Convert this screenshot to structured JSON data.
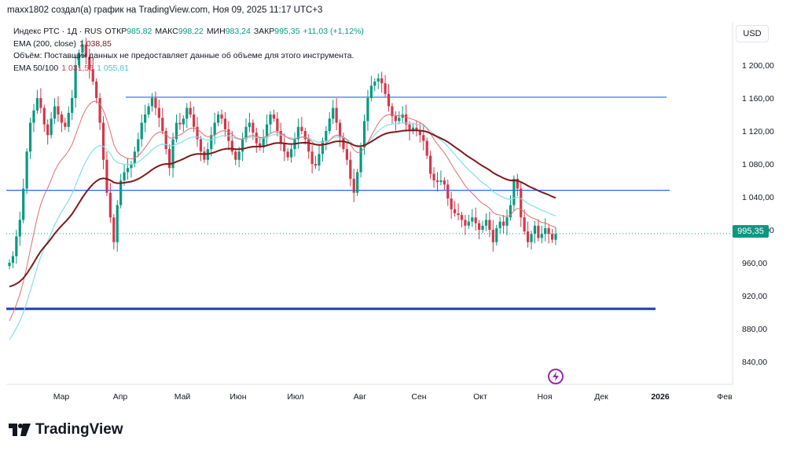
{
  "header": {
    "text": "maxx1802 создал(а) график на TradingView.com, Ноя 09, 2025 11:17 UTC+3"
  },
  "legend": {
    "symbol": "Индекс РТС · 1Д · RUS",
    "open_key": "ОТКР",
    "open_val": "985,82",
    "high_key": "МАКС",
    "high_val": "998,22",
    "low_key": "МИН",
    "low_val": "983,24",
    "close_key": "ЗАКР",
    "close_val": "995,35",
    "change": "+11,03 (+1,12%)",
    "ema200_label": "EMA (200, close)",
    "ema200_val": "1 038,85",
    "volume_text": "Объём: Поставщик данных не предоставляет данные об объеме для этого инструмента.",
    "ema50_100_label": "EMA 50/100",
    "ema50_val": "1 031,56",
    "ema100_val": "1 055,81"
  },
  "currency": "USD",
  "price_tag": "995,35",
  "brand": "TradingView",
  "colors": {
    "up": "#089981",
    "down": "#d2384a",
    "ema200": "#7a1b1b",
    "ema50": "#e06d6d",
    "ema100": "#7fe0ea",
    "hline": "#2962ff",
    "hline_thick": "#1e40af"
  },
  "chart_data": {
    "type": "candlestick",
    "y_ticks": [
      "1 200,00",
      "1 160,00",
      "1 120,00",
      "1 080,00",
      "1 040,00",
      "1 000,00",
      "960,00",
      "920,00",
      "880,00",
      "840,00"
    ],
    "x_ticks": [
      "Мар",
      "Апр",
      "Май",
      "Июн",
      "Июл",
      "Авг",
      "Сен",
      "Окт",
      "Ноя",
      "Дек",
      "2026",
      "Фев"
    ],
    "ylim": [
      810,
      1235
    ],
    "horizontal_lines": [
      1161,
      1048,
      904
    ],
    "current_price": 995.35,
    "closes": [
      960,
      968,
      992,
      1012,
      1050,
      1095,
      1130,
      1145,
      1160,
      1148,
      1128,
      1115,
      1135,
      1150,
      1140,
      1130,
      1125,
      1142,
      1160,
      1200,
      1215,
      1225,
      1210,
      1195,
      1180,
      1160,
      1130,
      1085,
      1045,
      1015,
      985,
      1030,
      1060,
      1070,
      1075,
      1080,
      1095,
      1110,
      1130,
      1140,
      1150,
      1160,
      1148,
      1136,
      1120,
      1098,
      1075,
      1110,
      1130,
      1128,
      1135,
      1148,
      1140,
      1125,
      1110,
      1095,
      1085,
      1098,
      1115,
      1130,
      1140,
      1135,
      1122,
      1108,
      1095,
      1085,
      1095,
      1110,
      1125,
      1130,
      1118,
      1105,
      1100,
      1112,
      1128,
      1140,
      1135,
      1120,
      1105,
      1095,
      1088,
      1098,
      1110,
      1125,
      1120,
      1110,
      1095,
      1080,
      1078,
      1092,
      1108,
      1120,
      1135,
      1148,
      1130,
      1112,
      1098,
      1085,
      1062,
      1045,
      1070,
      1100,
      1132,
      1160,
      1175,
      1180,
      1184,
      1178,
      1165,
      1150,
      1138,
      1132,
      1136,
      1140,
      1128,
      1120,
      1124,
      1120,
      1115,
      1108,
      1090,
      1068,
      1060,
      1058,
      1060,
      1055,
      1038,
      1025,
      1020,
      1018,
      1012,
      1005,
      1010,
      1015,
      1008,
      1000,
      1005,
      1012,
      1000,
      985,
      1002,
      1010,
      1005,
      1015,
      1030,
      1062,
      1050,
      1015,
      998,
      985,
      995,
      1005,
      990,
      995,
      1002,
      995,
      988,
      995
    ]
  }
}
